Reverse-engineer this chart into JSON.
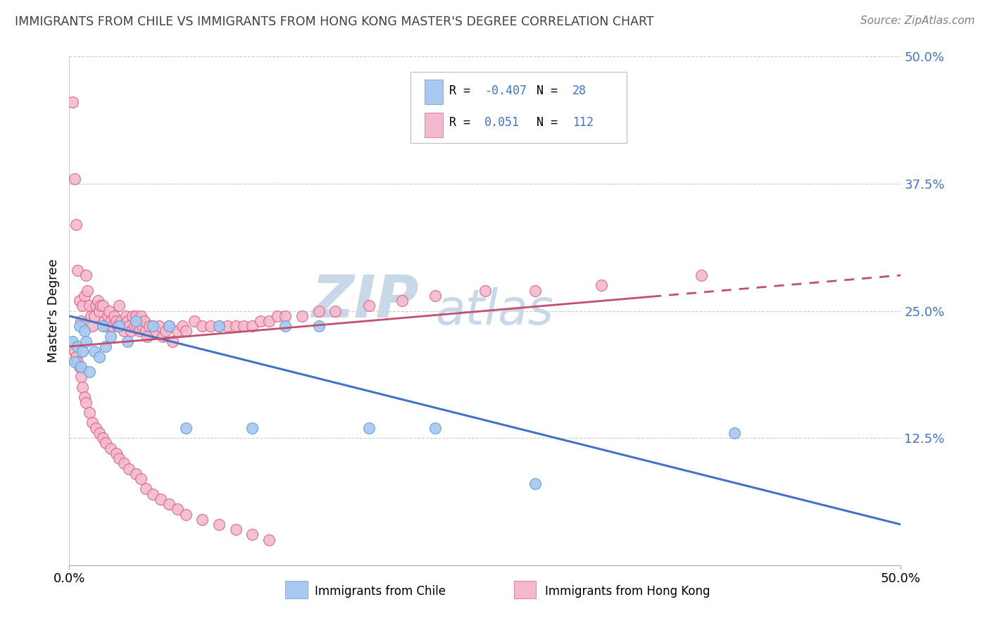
{
  "title": "IMMIGRANTS FROM CHILE VS IMMIGRANTS FROM HONG KONG MASTER'S DEGREE CORRELATION CHART",
  "source_text": "Source: ZipAtlas.com",
  "ylabel": "Master's Degree",
  "xlim": [
    0.0,
    0.5
  ],
  "ylim": [
    0.0,
    0.5
  ],
  "chile_color": "#A8C8F0",
  "chile_edge_color": "#5B9BD5",
  "hk_color": "#F4B8D0",
  "hk_edge_color": "#D9607A",
  "chile_R": -0.407,
  "chile_N": 28,
  "hk_R": 0.051,
  "hk_N": 112,
  "chile_line_color": "#4472C4",
  "hk_line_color": "#C05070",
  "watermark_color": "#C8D8E8",
  "legend_R_color": "#4472C4",
  "title_color": "#404040",
  "source_color": "#808080",
  "ytick_color": "#4472C4",
  "chile_line_x": [
    0.0,
    0.5
  ],
  "chile_line_y": [
    0.245,
    0.04
  ],
  "hk_line_x": [
    0.0,
    0.5
  ],
  "hk_line_y": [
    0.215,
    0.285
  ],
  "chile_x": [
    0.002,
    0.003,
    0.005,
    0.006,
    0.007,
    0.008,
    0.009,
    0.01,
    0.012,
    0.015,
    0.018,
    0.02,
    0.022,
    0.025,
    0.03,
    0.035,
    0.04,
    0.05,
    0.06,
    0.07,
    0.09,
    0.11,
    0.13,
    0.15,
    0.18,
    0.22,
    0.28,
    0.4
  ],
  "chile_y": [
    0.22,
    0.2,
    0.215,
    0.235,
    0.195,
    0.21,
    0.23,
    0.22,
    0.19,
    0.21,
    0.205,
    0.235,
    0.215,
    0.225,
    0.235,
    0.22,
    0.24,
    0.235,
    0.235,
    0.135,
    0.235,
    0.135,
    0.235,
    0.235,
    0.135,
    0.135,
    0.08,
    0.13
  ],
  "hk_x": [
    0.002,
    0.003,
    0.004,
    0.005,
    0.006,
    0.007,
    0.008,
    0.009,
    0.01,
    0.011,
    0.012,
    0.013,
    0.014,
    0.015,
    0.016,
    0.017,
    0.018,
    0.019,
    0.02,
    0.021,
    0.022,
    0.023,
    0.024,
    0.025,
    0.026,
    0.027,
    0.028,
    0.029,
    0.03,
    0.031,
    0.032,
    0.033,
    0.034,
    0.035,
    0.036,
    0.037,
    0.038,
    0.039,
    0.04,
    0.041,
    0.042,
    0.043,
    0.044,
    0.045,
    0.046,
    0.047,
    0.048,
    0.05,
    0.052,
    0.054,
    0.056,
    0.058,
    0.06,
    0.062,
    0.065,
    0.068,
    0.07,
    0.075,
    0.08,
    0.085,
    0.09,
    0.095,
    0.1,
    0.105,
    0.11,
    0.115,
    0.12,
    0.125,
    0.13,
    0.14,
    0.15,
    0.16,
    0.18,
    0.2,
    0.22,
    0.25,
    0.28,
    0.32,
    0.38,
    0.003,
    0.004,
    0.005,
    0.006,
    0.007,
    0.008,
    0.009,
    0.01,
    0.012,
    0.014,
    0.016,
    0.018,
    0.02,
    0.022,
    0.025,
    0.028,
    0.03,
    0.033,
    0.036,
    0.04,
    0.043,
    0.046,
    0.05,
    0.055,
    0.06,
    0.065,
    0.07,
    0.08,
    0.09,
    0.1,
    0.11,
    0.12
  ],
  "hk_y": [
    0.455,
    0.38,
    0.335,
    0.29,
    0.26,
    0.24,
    0.255,
    0.265,
    0.285,
    0.27,
    0.255,
    0.245,
    0.235,
    0.245,
    0.255,
    0.26,
    0.25,
    0.255,
    0.255,
    0.24,
    0.235,
    0.245,
    0.25,
    0.24,
    0.235,
    0.245,
    0.24,
    0.235,
    0.255,
    0.24,
    0.235,
    0.23,
    0.245,
    0.24,
    0.235,
    0.23,
    0.245,
    0.235,
    0.245,
    0.235,
    0.23,
    0.245,
    0.235,
    0.24,
    0.23,
    0.225,
    0.235,
    0.235,
    0.23,
    0.235,
    0.225,
    0.23,
    0.235,
    0.22,
    0.23,
    0.235,
    0.23,
    0.24,
    0.235,
    0.235,
    0.235,
    0.235,
    0.235,
    0.235,
    0.235,
    0.24,
    0.24,
    0.245,
    0.245,
    0.245,
    0.25,
    0.25,
    0.255,
    0.26,
    0.265,
    0.27,
    0.27,
    0.275,
    0.285,
    0.21,
    0.205,
    0.2,
    0.195,
    0.185,
    0.175,
    0.165,
    0.16,
    0.15,
    0.14,
    0.135,
    0.13,
    0.125,
    0.12,
    0.115,
    0.11,
    0.105,
    0.1,
    0.095,
    0.09,
    0.085,
    0.075,
    0.07,
    0.065,
    0.06,
    0.055,
    0.05,
    0.045,
    0.04,
    0.035,
    0.03,
    0.025
  ]
}
